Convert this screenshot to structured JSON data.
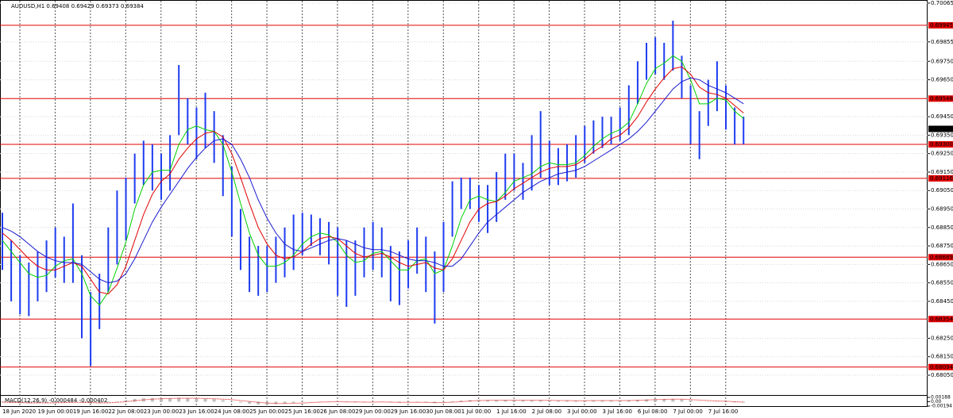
{
  "chart_data": {
    "type": "bar",
    "title": "AUDUSD,H1  0.69408 0.69429 0.69373 0.69384",
    "categories": [
      "18 Jun 2020",
      null,
      null,
      null,
      "19 Jun 00:00",
      null,
      null,
      null,
      "19 Jun 16:00",
      null,
      null,
      null,
      "22 Jun 08:00",
      null,
      null,
      null,
      "23 Jun 00:00",
      null,
      null,
      null,
      "23 Jun 16:00",
      null,
      null,
      null,
      "24 Jun 08:00",
      null,
      null,
      null,
      "25 Jun 00:00",
      null,
      null,
      null,
      "25 Jun 16:00",
      null,
      null,
      null,
      "26 Jun 08:00",
      null,
      null,
      null,
      "29 Jun 00:00",
      null,
      null,
      null,
      "29 Jun 16:00",
      null,
      null,
      null,
      "30 Jun 08:00",
      null,
      null,
      null,
      "1 Jul 00:00",
      null,
      null,
      null,
      "1 Jul 16:00",
      null,
      null,
      null,
      "2 Jul 08:00",
      null,
      null,
      null,
      "3 Jul 00:00",
      null,
      null,
      null,
      "3 Jul 16:00",
      null,
      null,
      null,
      "6 Jul 08:00",
      null,
      null,
      null,
      "7 Jul 00:00",
      null,
      null,
      null,
      "7 Jul 16:00",
      null,
      null,
      null,
      null
    ],
    "color": "#1e3cf0",
    "high": [
      0.6893,
      0.6878,
      0.687,
      0.6866,
      0.6872,
      0.6878,
      0.6885,
      0.688,
      0.6898,
      0.687,
      0.685,
      0.686,
      0.6885,
      0.6905,
      0.6912,
      0.6925,
      0.6932,
      0.693,
      0.6925,
      0.6935,
      0.6973,
      0.6955,
      0.695,
      0.6958,
      0.6948,
      0.6935,
      0.6918,
      0.6895,
      0.688,
      0.6875,
      0.6875,
      0.688,
      0.6885,
      0.6892,
      0.6893,
      0.6892,
      0.689,
      0.6888,
      0.6885,
      0.6878,
      0.6878,
      0.6885,
      0.6888,
      0.6885,
      0.6875,
      0.6872,
      0.6878,
      0.6885,
      0.688,
      0.6872,
      0.6888,
      0.691,
      0.6912,
      0.6912,
      0.6908,
      0.6908,
      0.6915,
      0.6925,
      0.6925,
      0.692,
      0.6935,
      0.6948,
      0.6932,
      0.6928,
      0.693,
      0.6935,
      0.694,
      0.6943,
      0.6945,
      0.6945,
      0.695,
      0.6962,
      0.6975,
      0.6985,
      0.6988,
      0.6985,
      0.6997,
      0.6978,
      0.6962,
      0.6948,
      0.6965,
      0.6975,
      0.6962,
      0.695,
      0.6945
    ],
    "low": [
      0.6862,
      0.6845,
      0.6838,
      0.6837,
      0.6845,
      0.685,
      0.6858,
      0.6855,
      0.6855,
      0.6825,
      0.681,
      0.683,
      0.685,
      0.6865,
      0.6878,
      0.6898,
      0.6908,
      0.6905,
      0.69,
      0.6905,
      0.6935,
      0.693,
      0.6922,
      0.6928,
      0.692,
      0.6902,
      0.688,
      0.6862,
      0.685,
      0.6848,
      0.685,
      0.6855,
      0.6858,
      0.6862,
      0.687,
      0.6875,
      0.687,
      0.6865,
      0.6848,
      0.6842,
      0.6848,
      0.6858,
      0.6862,
      0.6858,
      0.6845,
      0.6843,
      0.6852,
      0.686,
      0.685,
      0.6833,
      0.685,
      0.688,
      0.6895,
      0.6895,
      0.6888,
      0.6882,
      0.6888,
      0.69,
      0.6905,
      0.69,
      0.6905,
      0.6912,
      0.6908,
      0.6908,
      0.691,
      0.6912,
      0.692,
      0.6925,
      0.6928,
      0.693,
      0.6932,
      0.6935,
      0.6952,
      0.6965,
      0.6968,
      0.6965,
      0.697,
      0.6955,
      0.693,
      0.6922,
      0.694,
      0.6948,
      0.6938,
      0.693,
      0.693
    ],
    "series": [
      {
        "color": "#00d000",
        "values": [
          0.6878,
          0.6872,
          0.6866,
          0.686,
          0.6858,
          0.6859,
          0.6864,
          0.6867,
          0.6868,
          0.686,
          0.6848,
          0.6843,
          0.685,
          0.6863,
          0.6877,
          0.6895,
          0.6908,
          0.6915,
          0.6916,
          0.6916,
          0.693,
          0.6938,
          0.694,
          0.6938,
          0.6937,
          0.693,
          0.6915,
          0.6898,
          0.6882,
          0.687,
          0.6864,
          0.6864,
          0.6866,
          0.687,
          0.6876,
          0.688,
          0.6882,
          0.6881,
          0.6877,
          0.687,
          0.6866,
          0.6867,
          0.6871,
          0.6872,
          0.6867,
          0.6862,
          0.6862,
          0.6867,
          0.6868,
          0.686,
          0.6862,
          0.6875,
          0.689,
          0.69,
          0.6902,
          0.69,
          0.6899,
          0.6904,
          0.691,
          0.6912,
          0.6914,
          0.6918,
          0.692,
          0.6919,
          0.6919,
          0.692,
          0.6924,
          0.6929,
          0.6933,
          0.6936,
          0.6938,
          0.6942,
          0.6952,
          0.6963,
          0.6971,
          0.6974,
          0.6978,
          0.6975,
          0.6965,
          0.6952,
          0.6952,
          0.6955,
          0.6954,
          0.6948,
          0.6944
        ]
      },
      {
        "color": "#e00000",
        "values": [
          0.6882,
          0.6878,
          0.6873,
          0.6868,
          0.6864,
          0.6862,
          0.6862,
          0.6864,
          0.6866,
          0.6864,
          0.6857,
          0.685,
          0.6849,
          0.6854,
          0.6864,
          0.6878,
          0.6892,
          0.6903,
          0.691,
          0.6914,
          0.6922,
          0.6928,
          0.6933,
          0.6936,
          0.6937,
          0.6934,
          0.6925,
          0.6912,
          0.6898,
          0.6885,
          0.6876,
          0.687,
          0.6868,
          0.6869,
          0.6872,
          0.6876,
          0.6879,
          0.688,
          0.6879,
          0.6875,
          0.6871,
          0.6869,
          0.687,
          0.6871,
          0.6869,
          0.6866,
          0.6864,
          0.6865,
          0.6866,
          0.6863,
          0.6862,
          0.6868,
          0.6878,
          0.6888,
          0.6895,
          0.6898,
          0.6899,
          0.6902,
          0.6906,
          0.6909,
          0.6912,
          0.6915,
          0.6917,
          0.6918,
          0.6918,
          0.6919,
          0.6922,
          0.6926,
          0.6929,
          0.6933,
          0.6935,
          0.6939,
          0.6945,
          0.6953,
          0.696,
          0.6966,
          0.6971,
          0.6972,
          0.6968,
          0.6961,
          0.6958,
          0.6957,
          0.6955,
          0.6951,
          0.6947
        ]
      },
      {
        "color": "#1a1ad0",
        "values": [
          0.6885,
          0.6883,
          0.688,
          0.6876,
          0.6872,
          0.6869,
          0.6867,
          0.6866,
          0.6866,
          0.6865,
          0.6861,
          0.6857,
          0.6855,
          0.6856,
          0.686,
          0.6868,
          0.6878,
          0.6888,
          0.6896,
          0.6903,
          0.691,
          0.6917,
          0.6923,
          0.6928,
          0.6932,
          0.6933,
          0.693,
          0.6922,
          0.6912,
          0.69,
          0.689,
          0.6882,
          0.6876,
          0.6873,
          0.6872,
          0.6874,
          0.6876,
          0.6878,
          0.6879,
          0.6878,
          0.6876,
          0.6874,
          0.6873,
          0.6873,
          0.6872,
          0.687,
          0.6868,
          0.6867,
          0.6867,
          0.6866,
          0.6864,
          0.6864,
          0.6868,
          0.6875,
          0.6882,
          0.6888,
          0.6892,
          0.6896,
          0.69,
          0.6904,
          0.6907,
          0.691,
          0.6912,
          0.6914,
          0.6915,
          0.6916,
          0.6918,
          0.6921,
          0.6924,
          0.6927,
          0.693,
          0.6933,
          0.6937,
          0.6942,
          0.6948,
          0.6954,
          0.696,
          0.6964,
          0.6966,
          0.6965,
          0.6962,
          0.696,
          0.6958,
          0.6955,
          0.6952
        ]
      }
    ],
    "ylim": [
      0.67947,
      0.70082
    ],
    "yticks": [
      0.70065,
      0.69855,
      {
        "value": 0.6975,
        "label": "0.69750"
      },
      {
        "value": 0.6965,
        "label": "0.69650"
      },
      {
        "value": 0.6945,
        "label": "0.69450"
      },
      {
        "value": 0.6935,
        "label": "0.69350"
      },
      {
        "value": 0.6925,
        "label": "0.69250"
      },
      {
        "value": 0.6915,
        "label": "0.69150"
      },
      {
        "value": 0.6905,
        "label": "0.69050"
      },
      {
        "value": 0.6895,
        "label": "0.68950"
      },
      {
        "value": 0.6885,
        "label": "0.68850"
      },
      {
        "value": 0.6875,
        "label": "0.68750"
      },
      {
        "value": 0.6865,
        "label": "0.68650"
      },
      {
        "value": 0.6855,
        "label": "0.68550"
      },
      {
        "value": 0.6845,
        "label": "0.68450"
      },
      {
        "value": 0.6825,
        "label": "0.68250"
      },
      {
        "value": 0.6815,
        "label": "0.68150"
      },
      {
        "value": 0.6805,
        "label": "0.68050"
      }
    ],
    "levels": {
      "color": "#e00000",
      "values": [
        0.69945,
        0.69548,
        0.693,
        0.69116,
        0.68689,
        0.68354,
        0.68094
      ],
      "value_labels": [
        "0.69945",
        "0.69548",
        "0.69300",
        "0.69116",
        "0.68689",
        "0.68354",
        "0.68094"
      ]
    },
    "last_price": 0.69384,
    "macd": {
      "title": "MACD(12,26,9) -0.000484 -0.000402",
      "color": "#c0c0c0",
      "signal_color": "#e00000",
      "values": [
        -0.0003,
        -0.0005,
        -0.0006,
        -0.0007,
        -0.0006,
        -0.0005,
        -0.0003,
        -0.0002,
        -0.0001,
        -0.0004,
        -0.0008,
        -0.0007,
        -0.0003,
        0.0002,
        0.0007,
        0.0012,
        0.0015,
        0.0016,
        0.0015,
        0.0014,
        0.0017,
        0.0016,
        0.0014,
        0.0013,
        0.0011,
        0.0007,
        0.0002,
        -0.0004,
        -0.0009,
        -0.0012,
        -0.0012,
        -0.001,
        -0.0008,
        -0.0005,
        -0.0002,
        0,
        0.0001,
        0.0001,
        0,
        -0.0002,
        -0.0003,
        -0.0002,
        -0.0001,
        -0.0001,
        -0.0003,
        -0.0004,
        -0.0003,
        -0.0002,
        -0.0003,
        -0.0006,
        -0.0003,
        0.0002,
        0.0005,
        0.0007,
        0.0007,
        0.0006,
        0.0006,
        0.0007,
        0.0007,
        0.0006,
        0.0006,
        0.0006,
        0.0005,
        0.0004,
        0.0004,
        0.0004,
        0.0005,
        0.0005,
        0.0005,
        0.0005,
        0.0005,
        0.0006,
        0.0008,
        0.001,
        0.0011,
        0.0011,
        0.0012,
        0.001,
        0.0006,
        0.0001,
        0.0001,
        0.0001,
        -0.0001,
        -0.0003,
        -0.0004
      ],
      "signal": [
        -0.0002,
        -0.0003,
        -0.0004,
        -0.0005,
        -0.0005,
        -0.0005,
        -0.0005,
        -0.0004,
        -0.0003,
        -0.0003,
        -0.0004,
        -0.0005,
        -0.0005,
        -0.0003,
        0,
        0.0004,
        0.0008,
        0.0011,
        0.0013,
        0.0014,
        0.0015,
        0.0015,
        0.0015,
        0.0014,
        0.0013,
        0.0011,
        0.0009,
        0.0005,
        0.0001,
        -0.0003,
        -0.0006,
        -0.0008,
        -0.0008,
        -0.0007,
        -0.0006,
        -0.0004,
        -0.0002,
        -0.0001,
        0,
        -0.0001,
        -0.0001,
        -0.0002,
        -0.0002,
        -0.0001,
        -0.0002,
        -0.0003,
        -0.0003,
        -0.0003,
        -0.0003,
        -0.0004,
        -0.0004,
        -0.0002,
        0,
        0.0003,
        0.0005,
        0.0006,
        0.0006,
        0.0006,
        0.0006,
        0.0006,
        0.0006,
        0.0006,
        0.0006,
        0.0005,
        0.0005,
        0.0004,
        0.0004,
        0.0005,
        0.0005,
        0.0005,
        0.0005,
        0.0005,
        0.0006,
        0.0007,
        0.0009,
        0.001,
        0.0011,
        0.0011,
        0.0009,
        0.0007,
        0.0005,
        0.0003,
        0.0002,
        0,
        -0.0002
      ],
      "ylim": [
        -0.00194,
        0.00188
      ],
      "yticks": [
        0.00188,
        {
          "value": 0,
          "label": "0.00"
        },
        -0.00194
      ]
    }
  }
}
